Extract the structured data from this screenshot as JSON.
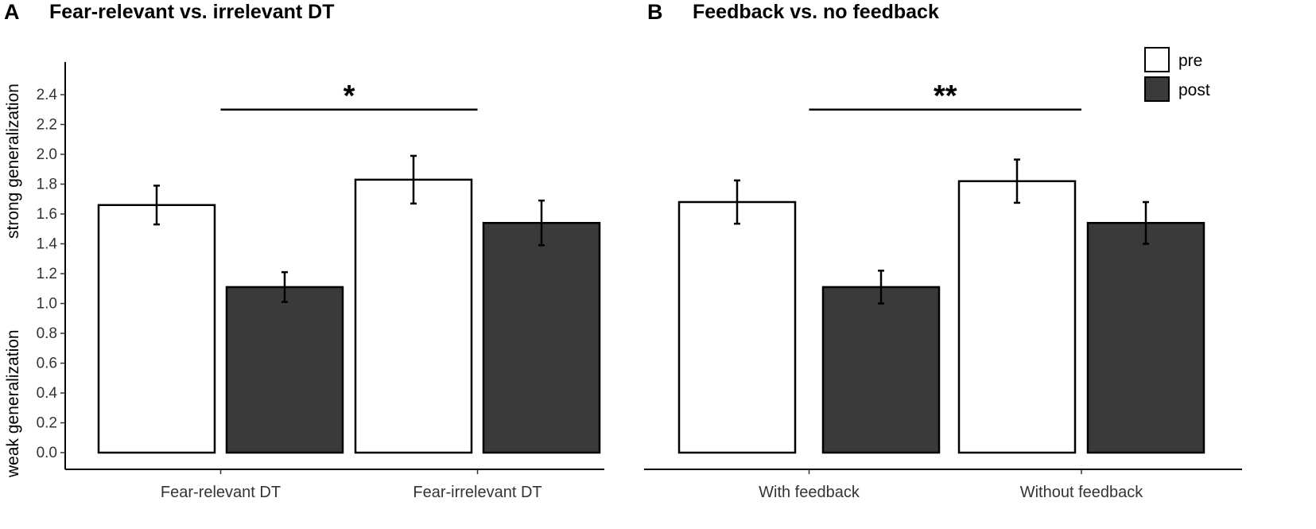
{
  "colors": {
    "pre": "#ffffff",
    "post": "#3a3a3a",
    "stroke": "#000000"
  },
  "chart_data": [
    {
      "type": "bar",
      "panel_letter": "A",
      "title": "Fear-relevant vs. irrelevant DT",
      "categories": [
        "Fear-relevant DT",
        "Fear-irrelevant DT"
      ],
      "series": [
        {
          "name": "pre",
          "values": [
            1.66,
            1.83
          ],
          "errors": [
            0.13,
            0.16
          ]
        },
        {
          "name": "post",
          "values": [
            1.11,
            1.54
          ],
          "errors": [
            0.1,
            0.15
          ]
        }
      ],
      "ylim": [
        -0.1,
        2.55
      ],
      "yticks": [
        0.0,
        0.2,
        0.4,
        0.6,
        0.8,
        1.0,
        1.2,
        1.4,
        1.6,
        1.8,
        2.0,
        2.2,
        2.4
      ],
      "ytick_labels": [
        "0.0",
        "0.2",
        "0.4",
        "0.6",
        "0.8",
        "1.0",
        "1.2",
        "1.4",
        "1.6",
        "1.8",
        "2.0",
        "2.2",
        "2.4"
      ],
      "ylabel_top": "strong generalization",
      "ylabel_bottom": "weak generalization",
      "significance": {
        "label": "*",
        "y": 2.3
      }
    },
    {
      "type": "bar",
      "panel_letter": "B",
      "title": "Feedback vs. no feedback",
      "categories": [
        "With feedback",
        "Without feedback"
      ],
      "series": [
        {
          "name": "pre",
          "values": [
            1.68,
            1.82
          ],
          "errors": [
            0.145,
            0.145
          ]
        },
        {
          "name": "post",
          "values": [
            1.11,
            1.54
          ],
          "errors": [
            0.11,
            0.14
          ]
        }
      ],
      "ylim": [
        -0.1,
        2.55
      ],
      "significance": {
        "label": "**",
        "y": 2.3
      },
      "legend": {
        "position": "top-right",
        "entries": [
          "pre",
          "post"
        ]
      }
    }
  ]
}
